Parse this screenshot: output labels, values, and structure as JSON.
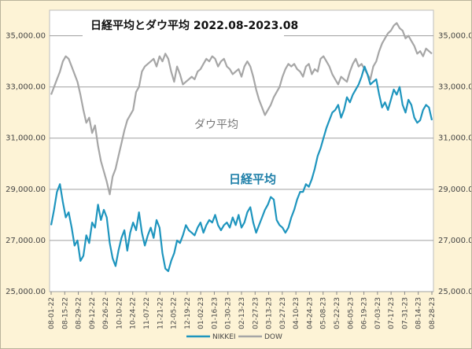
{
  "chart_data": {
    "type": "line",
    "title": "日経平均とダウ平均 2022.08-2023.08",
    "annotations": {
      "dow": "ダウ平均",
      "nikkei": "日経平均"
    },
    "ylim": [
      25000,
      36000
    ],
    "yticks": [
      "25,000.00",
      "27,000.00",
      "29,000.00",
      "31,000.00",
      "33,000.00",
      "35,000.00"
    ],
    "ytick_values": [
      25000,
      27000,
      29000,
      31000,
      33000,
      35000
    ],
    "x_tick_labels": [
      "08-01-22",
      "08-15-22",
      "08-29-22",
      "09-12-22",
      "09-26-22",
      "10-10-22",
      "10-24-22",
      "11-07-22",
      "11-21-22",
      "12-05-22",
      "12-19-22",
      "01-02-23",
      "01-16-23",
      "01-30-23",
      "02-13-23",
      "02-27-23",
      "03-13-23",
      "03-27-23",
      "04-10-23",
      "04-24-23",
      "05-08-23",
      "05-22-23",
      "06-05-23",
      "06-19-23",
      "07-03-23",
      "07-17-23",
      "07-31-23",
      "08-14-23",
      "08-28-23"
    ],
    "grid": true,
    "legend_position": "bottom",
    "colors": {
      "nikkei": "#1E95BE",
      "dow": "#A6A6A6",
      "grid": "#A0A0A0",
      "plot_bg": "#FFFFFF"
    },
    "series": [
      {
        "name": "NIKKEI",
        "values": [
          27600,
          28200,
          28900,
          29200,
          28500,
          27900,
          28100,
          27500,
          26800,
          27000,
          26200,
          26400,
          27200,
          26900,
          27700,
          27500,
          28400,
          27800,
          28200,
          27900,
          26900,
          26300,
          26000,
          26600,
          27100,
          27400,
          26600,
          27300,
          27700,
          27400,
          28100,
          27300,
          26800,
          27200,
          27500,
          27100,
          27800,
          27500,
          26500,
          25900,
          25800,
          26200,
          26500,
          27000,
          26900,
          27200,
          27600,
          27400,
          27300,
          27200,
          27500,
          27700,
          27300,
          27600,
          27800,
          27700,
          28000,
          27600,
          27400,
          27600,
          27700,
          27500,
          27900,
          27600,
          28000,
          27500,
          27700,
          28100,
          28300,
          27700,
          27300,
          27600,
          27900,
          28200,
          28400,
          28700,
          28600,
          27800,
          27600,
          27500,
          27300,
          27500,
          27900,
          28200,
          28600,
          28900,
          28900,
          29200,
          29100,
          29400,
          29800,
          30300,
          30600,
          31000,
          31400,
          31700,
          32000,
          32100,
          32300,
          31800,
          32100,
          32600,
          32400,
          32700,
          32900,
          33100,
          33400,
          33800,
          33500,
          33100,
          33200,
          33300,
          32700,
          32200,
          32400,
          32100,
          32500,
          32900,
          32700,
          33000,
          32300,
          32000,
          32500,
          32300,
          31800,
          31600,
          31700,
          32100,
          32300,
          32200,
          31700
        ]
      },
      {
        "name": "DOW",
        "values": [
          32700,
          33000,
          33300,
          33600,
          34000,
          34200,
          34100,
          33800,
          33500,
          33200,
          32700,
          32100,
          31600,
          31800,
          31200,
          31500,
          30700,
          30100,
          29700,
          29300,
          28800,
          29500,
          29800,
          30300,
          30800,
          31300,
          31700,
          31900,
          32100,
          32800,
          33000,
          33600,
          33800,
          33900,
          34000,
          34100,
          33800,
          34200,
          34000,
          34300,
          34100,
          33600,
          33200,
          33800,
          33500,
          33100,
          33200,
          33300,
          33400,
          33300,
          33600,
          33700,
          33900,
          34100,
          34000,
          34200,
          34100,
          33800,
          34000,
          34100,
          33800,
          33700,
          33500,
          33600,
          33700,
          33400,
          33800,
          34000,
          33800,
          33400,
          32900,
          32500,
          32200,
          31900,
          32100,
          32300,
          32600,
          32800,
          33000,
          33400,
          33700,
          33900,
          33800,
          33900,
          33700,
          33600,
          33400,
          33800,
          33900,
          33500,
          33700,
          33600,
          34100,
          34200,
          34000,
          33800,
          33500,
          33300,
          33100,
          33400,
          33300,
          33200,
          33600,
          33900,
          34100,
          33800,
          33900,
          33700,
          33500,
          33300,
          33800,
          34000,
          34400,
          34700,
          34900,
          35100,
          35200,
          35400,
          35500,
          35300,
          35200,
          34900,
          35000,
          34800,
          34600,
          34300,
          34400,
          34200,
          34500,
          34400,
          34300
        ]
      }
    ]
  }
}
